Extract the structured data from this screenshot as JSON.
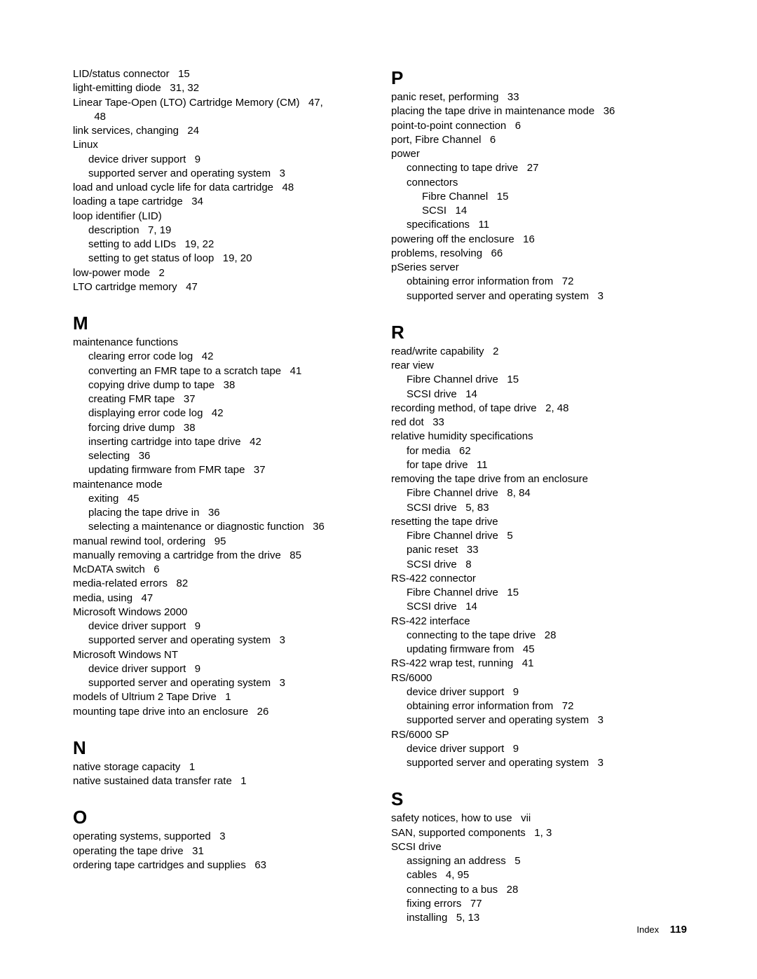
{
  "font": {
    "body_size": 15,
    "heading_size": 26,
    "footer_label_size": 13,
    "footer_num_size": 15
  },
  "colors": {
    "background": "#ffffff",
    "text": "#000000"
  },
  "footer": {
    "label": "Index",
    "page": "119"
  },
  "columns": [
    [
      {
        "type": "entry",
        "indent": 0,
        "text": "LID/status connector   15"
      },
      {
        "type": "entry",
        "indent": 0,
        "text": "light-emitting diode   31, 32"
      },
      {
        "type": "entry",
        "indent": 0,
        "text": "Linear Tape-Open (LTO) Cartridge Memory (CM)   47,"
      },
      {
        "type": "entry",
        "indent": 1,
        "text": "  48"
      },
      {
        "type": "entry",
        "indent": 0,
        "text": "link services, changing   24"
      },
      {
        "type": "entry",
        "indent": 0,
        "text": "Linux"
      },
      {
        "type": "entry",
        "indent": 1,
        "text": "device driver support   9"
      },
      {
        "type": "entry",
        "indent": 1,
        "text": "supported server and operating system   3"
      },
      {
        "type": "entry",
        "indent": 0,
        "text": "load and unload cycle life for data cartridge   48"
      },
      {
        "type": "entry",
        "indent": 0,
        "text": "loading a tape cartridge   34"
      },
      {
        "type": "entry",
        "indent": 0,
        "text": "loop identifier (LID)"
      },
      {
        "type": "entry",
        "indent": 1,
        "text": "description   7, 19"
      },
      {
        "type": "entry",
        "indent": 1,
        "text": "setting to add LIDs   19, 22"
      },
      {
        "type": "entry",
        "indent": 1,
        "text": "setting to get status of loop   19, 20"
      },
      {
        "type": "entry",
        "indent": 0,
        "text": "low-power mode   2"
      },
      {
        "type": "entry",
        "indent": 0,
        "text": "LTO cartridge memory   47"
      },
      {
        "type": "heading",
        "text": "M"
      },
      {
        "type": "entry",
        "indent": 0,
        "text": "maintenance functions"
      },
      {
        "type": "entry",
        "indent": 1,
        "text": "clearing error code log   42"
      },
      {
        "type": "entry",
        "indent": 1,
        "text": "converting an FMR tape to a scratch tape   41"
      },
      {
        "type": "entry",
        "indent": 1,
        "text": "copying drive dump to tape   38"
      },
      {
        "type": "entry",
        "indent": 1,
        "text": "creating FMR tape   37"
      },
      {
        "type": "entry",
        "indent": 1,
        "text": "displaying error code log   42"
      },
      {
        "type": "entry",
        "indent": 1,
        "text": "forcing drive dump   38"
      },
      {
        "type": "entry",
        "indent": 1,
        "text": "inserting cartridge into tape drive   42"
      },
      {
        "type": "entry",
        "indent": 1,
        "text": "selecting   36"
      },
      {
        "type": "entry",
        "indent": 1,
        "text": "updating firmware from FMR tape   37"
      },
      {
        "type": "entry",
        "indent": 0,
        "text": "maintenance mode"
      },
      {
        "type": "entry",
        "indent": 1,
        "text": "exiting   45"
      },
      {
        "type": "entry",
        "indent": 1,
        "text": "placing the tape drive in   36"
      },
      {
        "type": "entry",
        "indent": 1,
        "text": "selecting a maintenance or diagnostic function   36"
      },
      {
        "type": "entry",
        "indent": 0,
        "text": "manual rewind tool, ordering   95"
      },
      {
        "type": "entry",
        "indent": 0,
        "text": "manually removing a cartridge from the drive   85"
      },
      {
        "type": "entry",
        "indent": 0,
        "text": "McDATA switch   6"
      },
      {
        "type": "entry",
        "indent": 0,
        "text": "media-related errors   82"
      },
      {
        "type": "entry",
        "indent": 0,
        "text": "media, using   47"
      },
      {
        "type": "entry",
        "indent": 0,
        "text": "Microsoft Windows 2000"
      },
      {
        "type": "entry",
        "indent": 1,
        "text": "device driver support   9"
      },
      {
        "type": "entry",
        "indent": 1,
        "text": "supported server and operating system   3"
      },
      {
        "type": "entry",
        "indent": 0,
        "text": "Microsoft Windows NT"
      },
      {
        "type": "entry",
        "indent": 1,
        "text": "device driver support   9"
      },
      {
        "type": "entry",
        "indent": 1,
        "text": "supported server and operating system   3"
      },
      {
        "type": "entry",
        "indent": 0,
        "text": "models of Ultrium 2 Tape Drive   1"
      },
      {
        "type": "entry",
        "indent": 0,
        "text": "mounting tape drive into an enclosure   26"
      },
      {
        "type": "heading",
        "text": "N"
      },
      {
        "type": "entry",
        "indent": 0,
        "text": "native storage capacity   1"
      },
      {
        "type": "entry",
        "indent": 0,
        "text": "native sustained data transfer rate   1"
      },
      {
        "type": "heading",
        "text": "O"
      },
      {
        "type": "entry",
        "indent": 0,
        "text": "operating systems, supported   3"
      },
      {
        "type": "entry",
        "indent": 0,
        "text": "operating the tape drive   31"
      },
      {
        "type": "entry",
        "indent": 0,
        "text": "ordering tape cartridges and supplies   63"
      }
    ],
    [
      {
        "type": "heading",
        "first": true,
        "text": "P"
      },
      {
        "type": "entry",
        "indent": 0,
        "text": "panic reset, performing   33"
      },
      {
        "type": "entry",
        "indent": 0,
        "text": "placing the tape drive in maintenance mode   36"
      },
      {
        "type": "entry",
        "indent": 0,
        "text": "point-to-point connection   6"
      },
      {
        "type": "entry",
        "indent": 0,
        "text": "port, Fibre Channel   6"
      },
      {
        "type": "entry",
        "indent": 0,
        "text": "power"
      },
      {
        "type": "entry",
        "indent": 1,
        "text": "connecting to tape drive   27"
      },
      {
        "type": "entry",
        "indent": 1,
        "text": "connectors"
      },
      {
        "type": "entry",
        "indent": 2,
        "text": "Fibre Channel   15"
      },
      {
        "type": "entry",
        "indent": 2,
        "text": "SCSI   14"
      },
      {
        "type": "entry",
        "indent": 1,
        "text": "specifications   11"
      },
      {
        "type": "entry",
        "indent": 0,
        "text": "powering off the enclosure   16"
      },
      {
        "type": "entry",
        "indent": 0,
        "text": "problems, resolving   66"
      },
      {
        "type": "entry",
        "indent": 0,
        "text": "pSeries server"
      },
      {
        "type": "entry",
        "indent": 1,
        "text": "obtaining error information from   72"
      },
      {
        "type": "entry",
        "indent": 1,
        "text": "supported server and operating system   3"
      },
      {
        "type": "heading",
        "text": "R"
      },
      {
        "type": "entry",
        "indent": 0,
        "text": "read/write capability   2"
      },
      {
        "type": "entry",
        "indent": 0,
        "text": "rear view"
      },
      {
        "type": "entry",
        "indent": 1,
        "text": "Fibre Channel drive   15"
      },
      {
        "type": "entry",
        "indent": 1,
        "text": "SCSI drive   14"
      },
      {
        "type": "entry",
        "indent": 0,
        "text": "recording method, of tape drive   2, 48"
      },
      {
        "type": "entry",
        "indent": 0,
        "text": "red dot   33"
      },
      {
        "type": "entry",
        "indent": 0,
        "text": "relative humidity specifications"
      },
      {
        "type": "entry",
        "indent": 1,
        "text": "for media   62"
      },
      {
        "type": "entry",
        "indent": 1,
        "text": "for tape drive   11"
      },
      {
        "type": "entry",
        "indent": 0,
        "text": "removing the tape drive from an enclosure"
      },
      {
        "type": "entry",
        "indent": 1,
        "text": "Fibre Channel drive   8, 84"
      },
      {
        "type": "entry",
        "indent": 1,
        "text": "SCSI drive   5, 83"
      },
      {
        "type": "entry",
        "indent": 0,
        "text": "resetting the tape drive"
      },
      {
        "type": "entry",
        "indent": 1,
        "text": "Fibre Channel drive   5"
      },
      {
        "type": "entry",
        "indent": 1,
        "text": "panic reset   33"
      },
      {
        "type": "entry",
        "indent": 1,
        "text": "SCSI drive   8"
      },
      {
        "type": "entry",
        "indent": 0,
        "text": "RS-422 connector"
      },
      {
        "type": "entry",
        "indent": 1,
        "text": "Fibre Channel drive   15"
      },
      {
        "type": "entry",
        "indent": 1,
        "text": "SCSI drive   14"
      },
      {
        "type": "entry",
        "indent": 0,
        "text": "RS-422 interface"
      },
      {
        "type": "entry",
        "indent": 1,
        "text": "connecting to the tape drive   28"
      },
      {
        "type": "entry",
        "indent": 1,
        "text": "updating firmware from   45"
      },
      {
        "type": "entry",
        "indent": 0,
        "text": "RS-422 wrap test, running   41"
      },
      {
        "type": "entry",
        "indent": 0,
        "text": "RS/6000"
      },
      {
        "type": "entry",
        "indent": 1,
        "text": "device driver support   9"
      },
      {
        "type": "entry",
        "indent": 1,
        "text": "obtaining error information from   72"
      },
      {
        "type": "entry",
        "indent": 1,
        "text": "supported server and operating system   3"
      },
      {
        "type": "entry",
        "indent": 0,
        "text": "RS/6000 SP"
      },
      {
        "type": "entry",
        "indent": 1,
        "text": "device driver support   9"
      },
      {
        "type": "entry",
        "indent": 1,
        "text": "supported server and operating system   3"
      },
      {
        "type": "heading",
        "text": "S"
      },
      {
        "type": "entry",
        "indent": 0,
        "text": "safety notices, how to use   vii"
      },
      {
        "type": "entry",
        "indent": 0,
        "text": "SAN, supported components   1, 3"
      },
      {
        "type": "entry",
        "indent": 0,
        "text": "SCSI drive"
      },
      {
        "type": "entry",
        "indent": 1,
        "text": "assigning an address   5"
      },
      {
        "type": "entry",
        "indent": 1,
        "text": "cables   4, 95"
      },
      {
        "type": "entry",
        "indent": 1,
        "text": "connecting to a bus   28"
      },
      {
        "type": "entry",
        "indent": 1,
        "text": "fixing errors   77"
      },
      {
        "type": "entry",
        "indent": 1,
        "text": "installing   5, 13"
      }
    ]
  ]
}
